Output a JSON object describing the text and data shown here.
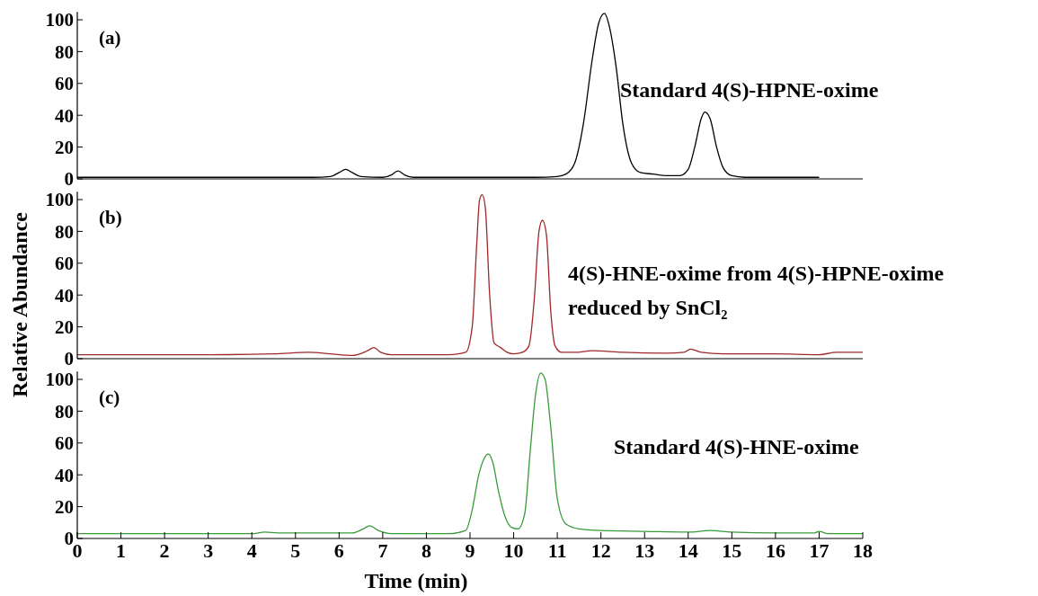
{
  "chart_data": [
    {
      "type": "line",
      "annotations": [
        "(a)",
        "Standard 4(S)-HPNE-oxime"
      ],
      "xlim": [
        0,
        18
      ],
      "ylim": [
        0,
        105
      ],
      "yticks": [
        0,
        20,
        40,
        60,
        80,
        100
      ],
      "tick_labels": "y",
      "series": [
        {
          "color": "#000000",
          "x": [
            0,
            5.4,
            5.8,
            6.0,
            6.15,
            6.3,
            6.5,
            7.0,
            7.2,
            7.35,
            7.5,
            7.7,
            10.5,
            11.0,
            11.2,
            11.4,
            11.6,
            11.8,
            11.95,
            12.08,
            12.2,
            12.35,
            12.5,
            12.7,
            12.9,
            13.2,
            13.5,
            13.8,
            14.0,
            14.15,
            14.3,
            14.38,
            14.5,
            14.65,
            14.8,
            15.0,
            15.3,
            17.0
          ],
          "values": [
            1,
            1,
            1.5,
            4,
            6,
            4,
            1.5,
            1,
            2.5,
            5,
            2.5,
            1,
            1,
            1.5,
            3,
            10,
            35,
            75,
            98,
            104,
            95,
            70,
            35,
            10,
            4,
            3,
            2,
            2,
            6,
            20,
            38,
            42,
            38,
            20,
            7,
            2,
            1,
            1
          ]
        }
      ]
    },
    {
      "type": "line",
      "annotations": [
        "(b)",
        "4(S)-HNE-oxime from 4(S)-HPNE-oxime reduced by SnCl₂"
      ],
      "ylabel": "Relative Abundance",
      "xlim": [
        0,
        18
      ],
      "ylim": [
        0,
        105
      ],
      "yticks": [
        0,
        20,
        40,
        60,
        80,
        100
      ],
      "tick_labels": "y",
      "series": [
        {
          "color": "#a0282a",
          "x": [
            0,
            3.0,
            4.5,
            5.3,
            5.8,
            6.3,
            6.65,
            6.8,
            6.95,
            7.2,
            8.5,
            8.9,
            9.05,
            9.15,
            9.22,
            9.28,
            9.35,
            9.45,
            9.55,
            9.7,
            9.85,
            10.0,
            10.2,
            10.35,
            10.48,
            10.58,
            10.66,
            10.75,
            10.85,
            10.95,
            11.1,
            11.4,
            11.8,
            12.5,
            13.5,
            13.9,
            14.05,
            14.3,
            14.8,
            16.0,
            17.0,
            17.4,
            18.0
          ],
          "values": [
            2.5,
            2.5,
            3,
            4,
            3,
            2,
            5,
            7,
            4,
            2.5,
            2.5,
            4,
            20,
            70,
            100,
            103,
            95,
            40,
            10,
            7,
            4,
            3,
            4,
            8,
            40,
            80,
            87,
            78,
            30,
            8,
            4,
            4,
            5,
            4,
            3.5,
            4,
            6,
            4,
            3,
            3,
            2.5,
            4,
            4
          ]
        }
      ]
    },
    {
      "type": "line",
      "annotations": [
        "(c)",
        "Standard 4(S)-HNE-oxime"
      ],
      "xlabel": "Time (min)",
      "xlim": [
        0,
        18
      ],
      "xticks": [
        0,
        1,
        2,
        3,
        4,
        5,
        6,
        7,
        8,
        9,
        10,
        11,
        12,
        13,
        14,
        15,
        16,
        17,
        18
      ],
      "ylim": [
        0,
        105
      ],
      "yticks": [
        0,
        20,
        40,
        60,
        80,
        100
      ],
      "series": [
        {
          "color": "#3a9a3a",
          "x": [
            0,
            4.0,
            4.3,
            4.6,
            5.5,
            6.3,
            6.55,
            6.7,
            6.9,
            7.2,
            8.5,
            8.9,
            9.05,
            9.2,
            9.32,
            9.42,
            9.52,
            9.65,
            9.8,
            9.95,
            10.1,
            10.25,
            10.38,
            10.5,
            10.62,
            10.72,
            10.85,
            11.0,
            11.2,
            11.5,
            12.0,
            13.0,
            14.0,
            14.5,
            15.0,
            16.0,
            16.9,
            17.0,
            17.2,
            18.0
          ],
          "values": [
            3,
            3,
            4,
            3.5,
            3.5,
            3.5,
            6,
            8,
            5,
            3,
            3,
            5,
            18,
            40,
            50,
            53,
            48,
            30,
            14,
            7,
            6,
            15,
            55,
            90,
            104,
            100,
            70,
            25,
            9,
            6,
            5,
            4.5,
            4,
            5,
            4,
            3.5,
            3.5,
            4.5,
            3,
            3
          ]
        }
      ]
    }
  ]
}
